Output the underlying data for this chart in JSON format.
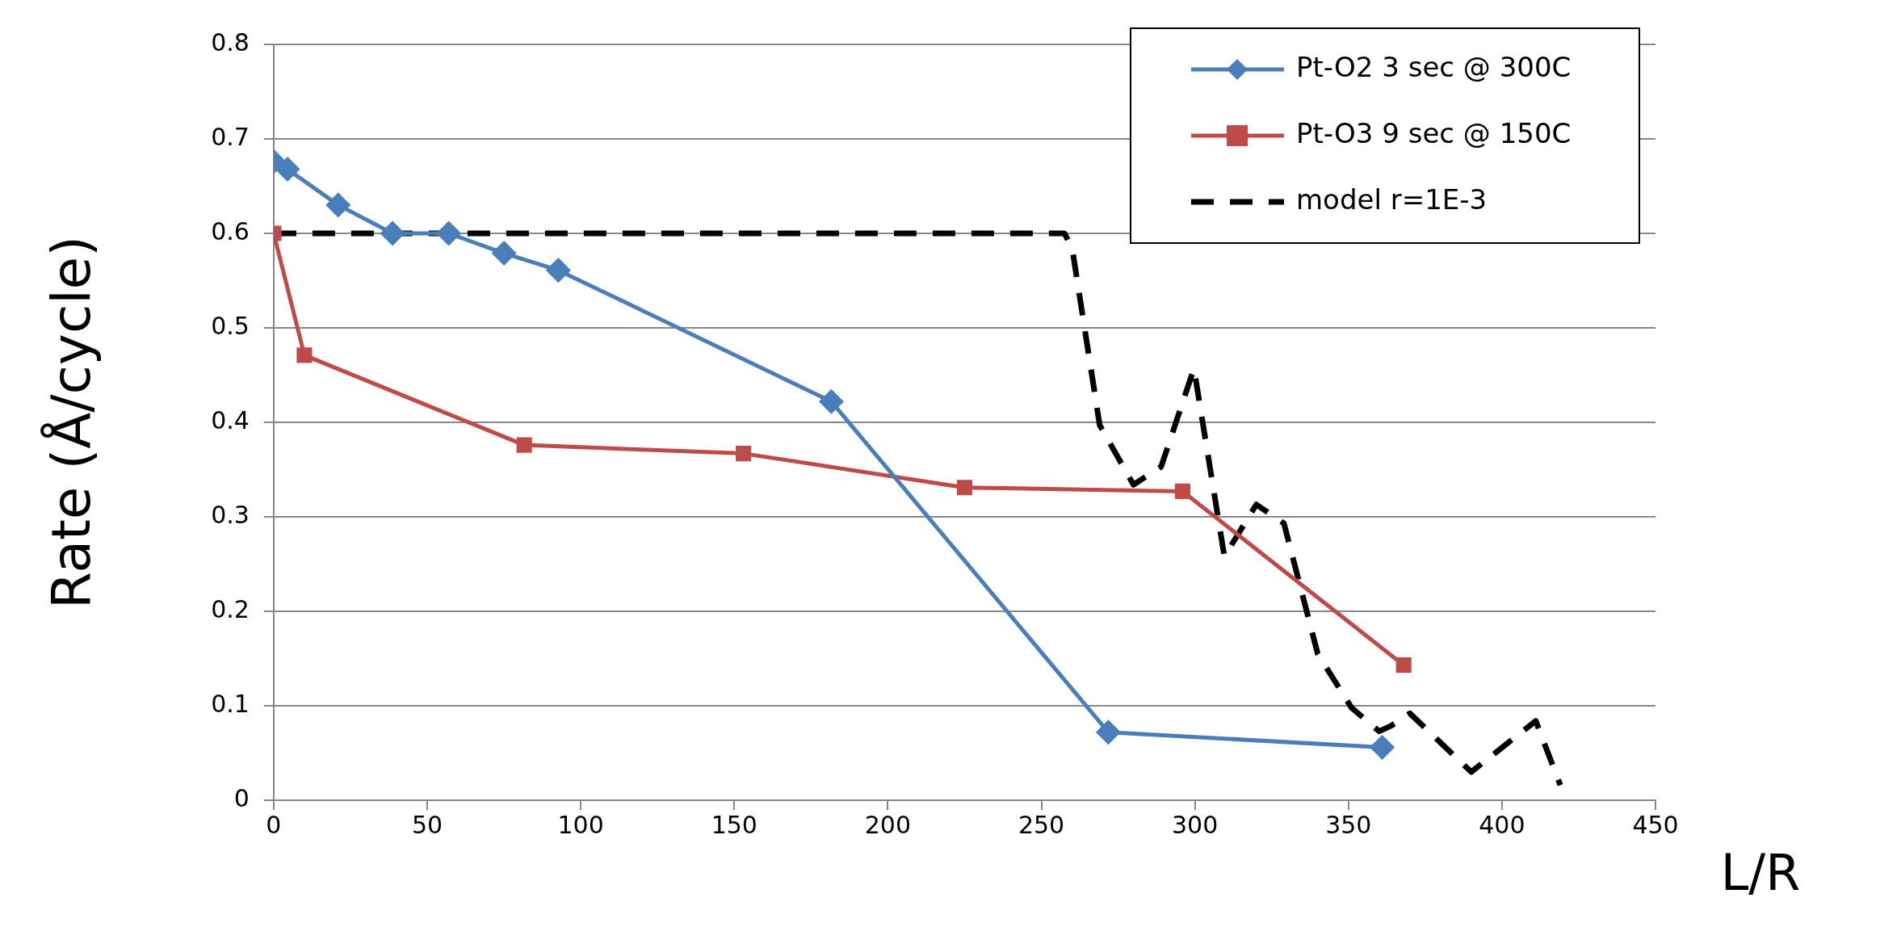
{
  "chart_data": {
    "type": "line",
    "xlabel": "L/R",
    "ylabel": "Rate (Å/cycle)",
    "xlim": [
      0,
      450
    ],
    "xticks": [
      0,
      50,
      100,
      150,
      200,
      250,
      300,
      350,
      400,
      450
    ],
    "ylim": [
      0,
      0.8
    ],
    "yticks": [
      0,
      0.1,
      0.2,
      0.3,
      0.4,
      0.5,
      0.6,
      0.7,
      0.8
    ],
    "grid": "y",
    "legend": "top right",
    "series": [
      {
        "name": "Pt-O2 3 sec @ 300C",
        "color": "#4a7ebb",
        "marker": "diamond",
        "line_style": "solid",
        "x": [
          0,
          4.5,
          21,
          38.7,
          57,
          75,
          92.7,
          181.6,
          271.8,
          361
        ],
        "values": [
          0.676,
          0.668,
          0.63,
          0.6,
          0.6,
          0.579,
          0.561,
          0.422,
          0.072,
          0.056
        ]
      },
      {
        "name": "Pt-O3 9 sec @ 150C",
        "color": "#be4b48",
        "marker": "square",
        "line_style": "solid",
        "x": [
          0,
          10,
          81.6,
          153,
          225,
          296,
          368
        ],
        "values": [
          0.6,
          0.471,
          0.376,
          0.367,
          0.331,
          0.327,
          0.143
        ]
      },
      {
        "name": "model r=1E-3",
        "color": "#000000",
        "marker": "none",
        "line_style": "dashed",
        "x": [
          0,
          257.5,
          260,
          269,
          280,
          289,
          299.7,
          309.6,
          320,
          329,
          340,
          351,
          360,
          364,
          370,
          390,
          411,
          419
        ],
        "values": [
          0.6,
          0.6,
          0.585,
          0.397,
          0.334,
          0.353,
          0.457,
          0.258,
          0.313,
          0.293,
          0.155,
          0.098,
          0.073,
          0.079,
          0.092,
          0.03,
          0.084,
          0.016
        ]
      }
    ]
  }
}
